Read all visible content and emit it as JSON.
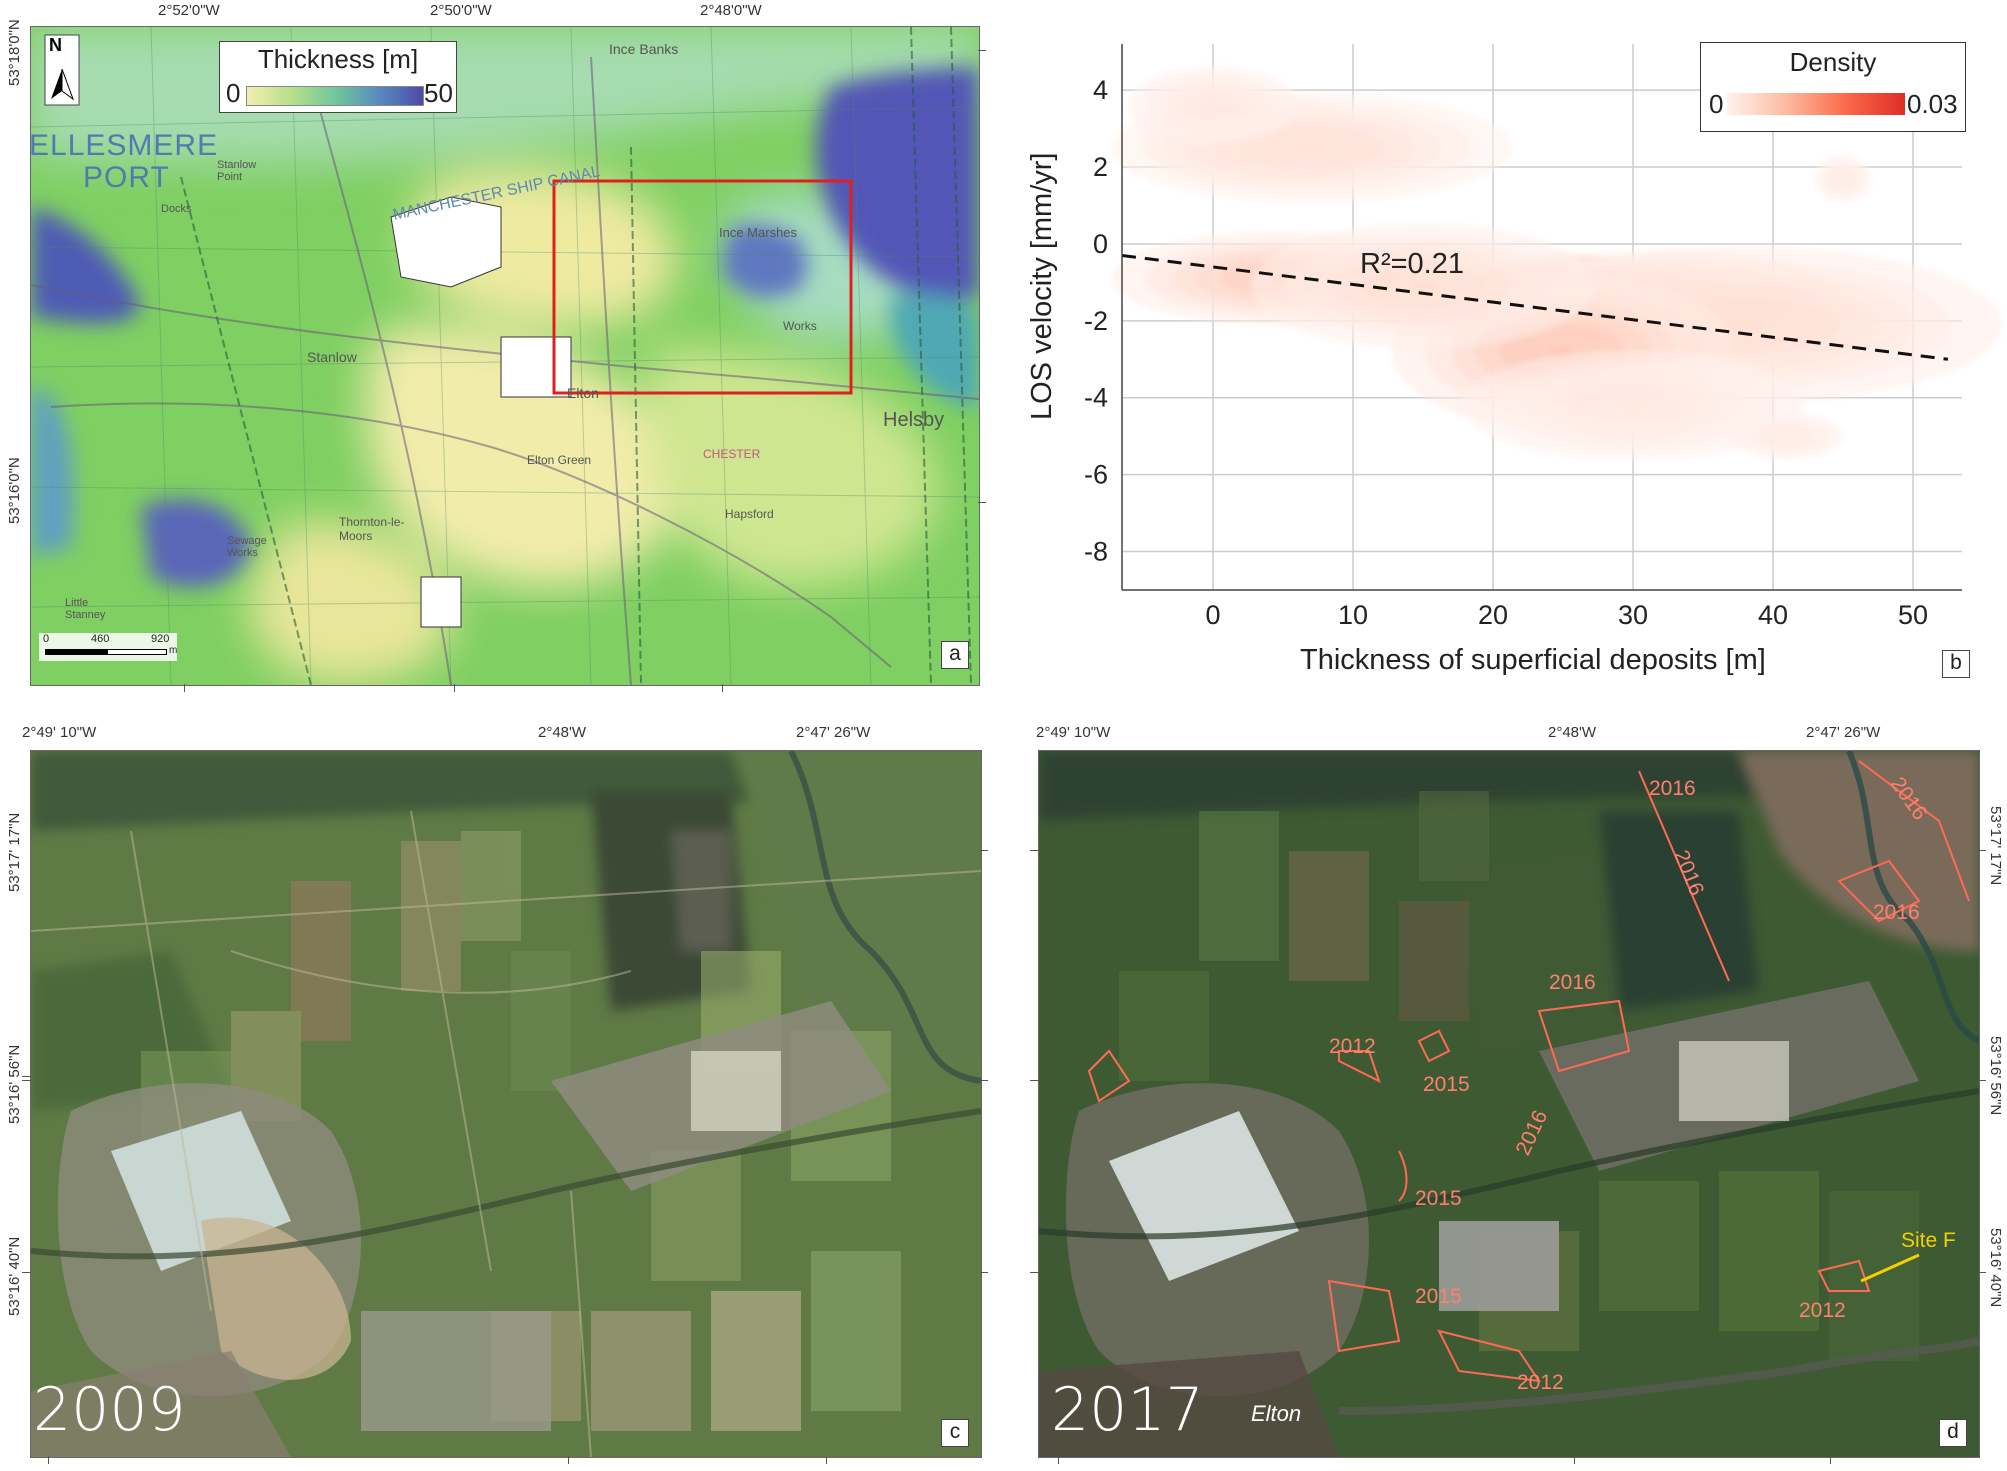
{
  "panel_a": {
    "label": "a",
    "top_coords": [
      "2°52'0\"W",
      "2°50'0\"W",
      "2°48'0\"W"
    ],
    "left_coords": [
      "53°18'0\"N",
      "53°16'0\"N"
    ],
    "north_label": "N",
    "legend": {
      "title": "Thickness [m]",
      "min": "0",
      "max": "50"
    },
    "scalebar": {
      "ticks": [
        "0",
        "460",
        "920"
      ],
      "unit": "m"
    },
    "places": {
      "ellesmere": "ELLESMERE",
      "port": "PORT",
      "ince_banks": "Ince Banks",
      "ship_canal": "MANCHESTER SHIP CANAL",
      "ince_marshes": "Ince Marshes",
      "stanlow_point": "Stanlow Point",
      "stanlow": "Stanlow",
      "elton": "Elton",
      "elton_green": "Elton Green",
      "helsby": "Helsby",
      "thornton": "Thornton-le-Moors",
      "hapsford": "Hapsford",
      "sewage": "Sewage Works",
      "works": "Works",
      "chester": "CHESTER",
      "little_stanney": "Little Stanney",
      "docks": "Docks"
    },
    "colors": {
      "low": "#f3ecaa",
      "mid": "#8ed16a",
      "high": "#5a58b8",
      "box": "#e02020"
    }
  },
  "panel_b": {
    "label": "b",
    "chart_data": {
      "type": "heatmap",
      "xlabel": "Thickness of superficial deposits [m]",
      "ylabel": "LOS velocity [mm/yr]",
      "x_ticks": [
        "0",
        "10",
        "20",
        "30",
        "40",
        "50"
      ],
      "y_ticks": [
        "4",
        "2",
        "0",
        "-2",
        "-4",
        "-6",
        "-8"
      ],
      "xlim": [
        -6.5,
        53.5
      ],
      "ylim": [
        -9,
        5.2
      ],
      "legend_title": "Density",
      "legend_min": "0",
      "legend_max": "0.03",
      "annotation": "R²=0.21",
      "regression": {
        "x": [
          -6.5,
          52.5
        ],
        "y": [
          -0.3,
          -3.0
        ]
      },
      "density_blobs": [
        {
          "x": 26,
          "y": -1.9,
          "sx": 4.5,
          "sy": 0.8,
          "peak": 1.0
        },
        {
          "x": 33,
          "y": -1.6,
          "sx": 6.0,
          "sy": 0.7,
          "peak": 0.35
        },
        {
          "x": 38,
          "y": -2.1,
          "sx": 9.0,
          "sy": 1.0,
          "peak": 0.12
        },
        {
          "x": 25,
          "y": -2.8,
          "sx": 6.0,
          "sy": 1.0,
          "peak": 0.25
        },
        {
          "x": 5,
          "y": -0.9,
          "sx": 6.0,
          "sy": 0.6,
          "peak": 0.22
        },
        {
          "x": 15,
          "y": -1.1,
          "sx": 6.0,
          "sy": 0.8,
          "peak": 0.12
        },
        {
          "x": 3,
          "y": 2.7,
          "sx": 4.0,
          "sy": 0.6,
          "peak": 0.22
        },
        {
          "x": 7,
          "y": 2.5,
          "sx": 7.0,
          "sy": 0.7,
          "peak": 0.1
        },
        {
          "x": 0,
          "y": 3.6,
          "sx": 3.0,
          "sy": 0.5,
          "peak": 0.06
        },
        {
          "x": 30,
          "y": -4.2,
          "sx": 6.0,
          "sy": 0.7,
          "peak": 0.06
        },
        {
          "x": 41,
          "y": -5.0,
          "sx": 2.0,
          "sy": 0.3,
          "peak": 0.05
        },
        {
          "x": 45,
          "y": 1.7,
          "sx": 1.0,
          "sy": 0.3,
          "peak": 0.05
        }
      ],
      "colors": {
        "low": "#fff3ee",
        "high": "#d7301f",
        "line": "#111111",
        "grid": "#cccccc"
      }
    }
  },
  "panel_c": {
    "label": "c",
    "year": "2009",
    "top_coords": [
      "2°49' 10\"W",
      "2°48'W",
      "2°47' 26\"W"
    ],
    "left_coords": [
      "53°17' 17\"N",
      "53°16' 56\"N",
      "53°16' 40\"N"
    ]
  },
  "panel_d": {
    "label": "d",
    "year": "2017",
    "place": "Elton",
    "top_coords": [
      "2°49' 10\"W",
      "2°48'W",
      "2°47' 26\"W"
    ],
    "right_coords": [
      "53°17' 17\"N",
      "53°16' 56\"N",
      "53°16' 40\"N"
    ],
    "site_label": "Site F",
    "annotations": [
      "2016",
      "2016",
      "2016",
      "2016",
      "2012",
      "2015",
      "2016",
      "2016",
      "2015",
      "2015",
      "2012"
    ],
    "colors": {
      "annotation": "#ff6a55",
      "site": "#f5d000"
    }
  }
}
